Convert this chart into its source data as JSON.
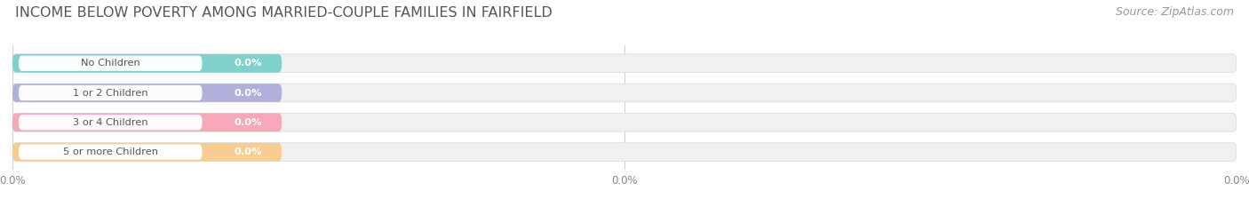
{
  "title": "INCOME BELOW POVERTY AMONG MARRIED-COUPLE FAMILIES IN FAIRFIELD",
  "source": "Source: ZipAtlas.com",
  "categories": [
    "No Children",
    "1 or 2 Children",
    "3 or 4 Children",
    "5 or more Children"
  ],
  "values": [
    0.0,
    0.0,
    0.0,
    0.0
  ],
  "bar_colors": [
    "#72ceca",
    "#a9a9d9",
    "#f5a0b4",
    "#f8ca88"
  ],
  "bg_color": "#ffffff",
  "bar_bg_color": "#f0f0f0",
  "title_fontsize": 11.5,
  "source_fontsize": 9,
  "xtick_labels": [
    "0.0%",
    "0.0%",
    "0.0%"
  ]
}
